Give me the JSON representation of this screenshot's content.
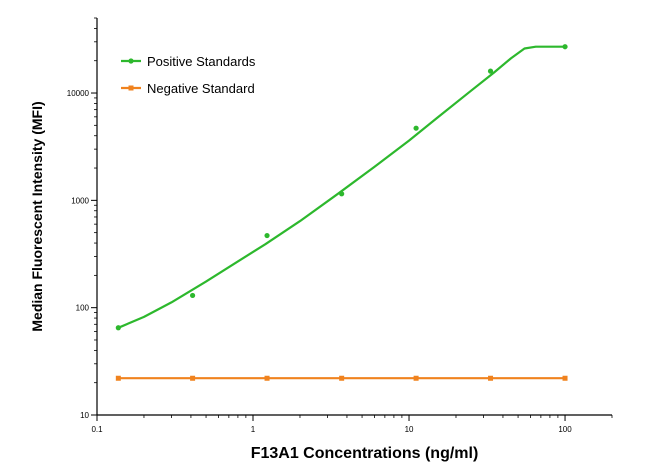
{
  "chart_data": {
    "type": "line",
    "title": "",
    "xlabel": "F13A1 Concentrations (ng/ml)",
    "ylabel": "Median Fluorescent Intensity (MFI)",
    "xscale": "log",
    "yscale": "log",
    "xlim": [
      0.1,
      200
    ],
    "ylim": [
      10,
      50000
    ],
    "xticks": [
      {
        "value": 0.1,
        "label": "0.1"
      },
      {
        "value": 1,
        "label": "1"
      },
      {
        "value": 10,
        "label": "10"
      },
      {
        "value": 100,
        "label": "100"
      }
    ],
    "yticks": [
      {
        "value": 10,
        "label": "10"
      },
      {
        "value": 100,
        "label": "100"
      },
      {
        "value": 1000,
        "label": "1000"
      },
      {
        "value": 10000,
        "label": "10000"
      }
    ],
    "legend_position": "top-left",
    "grid": false,
    "series": [
      {
        "name": "Positive Standards",
        "color": "#2db82d",
        "x": [
          0.137,
          0.41,
          1.23,
          3.7,
          11.1,
          33.3,
          100
        ],
        "y": [
          65,
          130,
          470,
          1150,
          4700,
          16000,
          27000
        ],
        "curve": {
          "x": [
            0.137,
            0.2,
            0.3,
            0.5,
            0.8,
            1.2,
            2,
            3.5,
            6,
            10,
            15,
            25,
            35,
            45,
            55,
            65,
            100
          ],
          "y": [
            65,
            82,
            112,
            175,
            270,
            390,
            640,
            1150,
            2050,
            3600,
            5800,
            10500,
            15500,
            21000,
            26000,
            27000,
            27000
          ]
        }
      },
      {
        "name": "Negative Standard",
        "color": "#f0821e",
        "x": [
          0.137,
          0.41,
          1.23,
          3.7,
          11.1,
          33.3,
          100
        ],
        "y": [
          22,
          22,
          22,
          22,
          22,
          22,
          22
        ]
      }
    ]
  }
}
